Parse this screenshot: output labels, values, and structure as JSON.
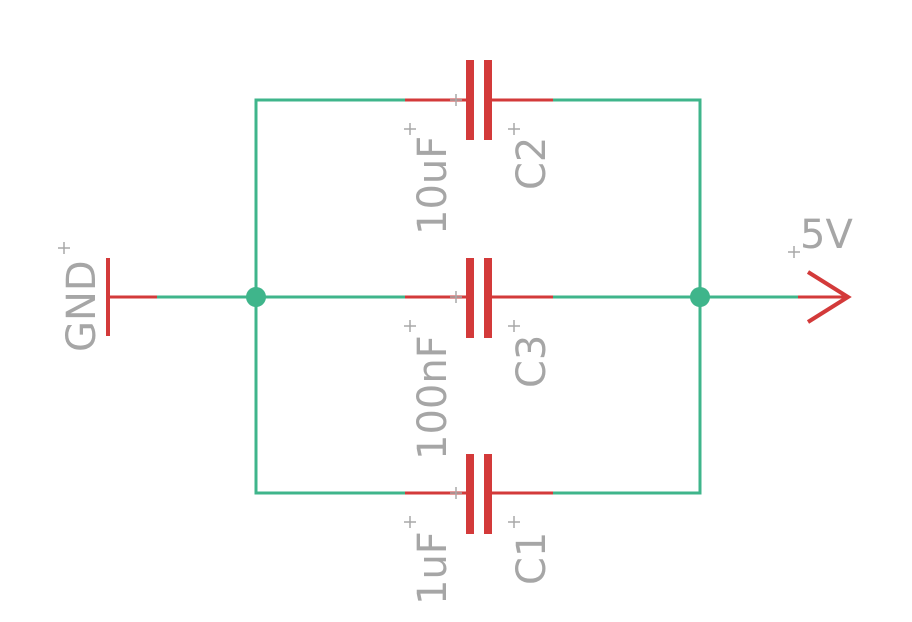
{
  "colors": {
    "wire": "#3fb58b",
    "part": "#d33a3a",
    "label": "#a6a6a6"
  },
  "components": {
    "c1": {
      "name": "C1",
      "value": "1uF"
    },
    "c2": {
      "name": "C2",
      "value": "10uF"
    },
    "c3": {
      "name": "C3",
      "value": "100nF"
    }
  },
  "supplies": {
    "gnd": "GND",
    "vcc": "5V"
  }
}
